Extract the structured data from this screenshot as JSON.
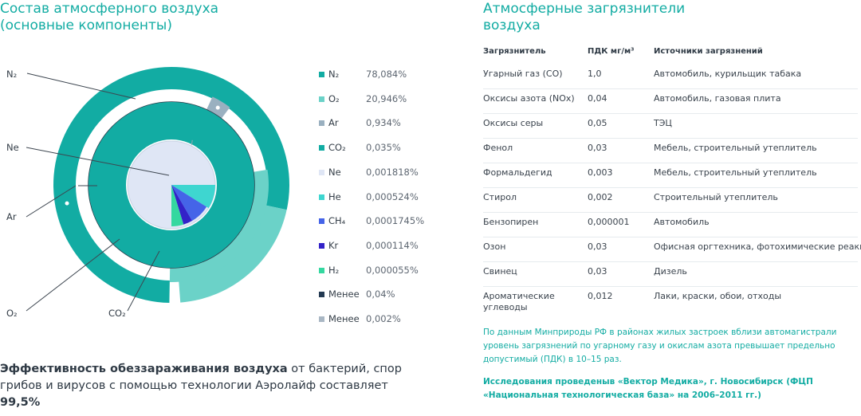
{
  "left_title": "Состав атмосферного воздуха\n(основные компоненты)",
  "right_title": "Атмосферные загрязнители\nвоздуха",
  "ring_labels": {
    "n2": "N₂",
    "ne": "Ne",
    "ar": "Ar",
    "o2": "O₂",
    "co2": "CO₂"
  },
  "chart_data": {
    "type": "pie",
    "title": "",
    "series": [
      {
        "name": "N₂",
        "value": 78.084,
        "label": "78,084%",
        "color": "#12aca3"
      },
      {
        "name": "O₂",
        "value": 20.946,
        "label": "20,946%",
        "color": "#6bd2c8"
      },
      {
        "name": "Ar",
        "value": 0.934,
        "label": "0,934%",
        "color": "#9ab0c0"
      },
      {
        "name": "CO₂",
        "value": 0.035,
        "label": "0,035%",
        "color": "#12aca3"
      },
      {
        "name": "Ne",
        "value": 0.001818,
        "label": "0,001818%",
        "color": "#dfe6f5"
      },
      {
        "name": "He",
        "value": 0.000524,
        "label": "0,000524%",
        "color": "#3ed6d0"
      },
      {
        "name": "CH₄",
        "value": 0.0001745,
        "label": "0,0001745%",
        "color": "#4564e8"
      },
      {
        "name": "Kr",
        "value": 0.000114,
        "label": "0,000114%",
        "color": "#3322c8"
      },
      {
        "name": "H₂",
        "value": 5.5e-05,
        "label": "0,000055%",
        "color": "#34d8a0"
      },
      {
        "name": "Менее",
        "value": 0.04,
        "label": "0,04%",
        "color": "#233a52"
      },
      {
        "name": "Менее",
        "value": 0.002,
        "label": "0,002%",
        "color": "#a9b7c4"
      }
    ]
  },
  "table": {
    "headers": [
      "Загрязнитель",
      "ПДК мг/м³",
      "Источники загрязнений"
    ],
    "rows": [
      [
        "Угарный газ (CO)",
        "1,0",
        "Автомобиль, курильщик табака"
      ],
      [
        "Оксисы азота (NOx)",
        "0,04",
        "Автомобиль, газовая плита"
      ],
      [
        "Оксисы серы",
        "0,05",
        "ТЭЦ"
      ],
      [
        "Фенол",
        "0,03",
        "Мебель, строительный утеплитель"
      ],
      [
        "Формальдегид",
        "0,003",
        "Мебель, строительный утеплитель"
      ],
      [
        "Стирол",
        "0,002",
        "Строительный утеплитель"
      ],
      [
        "Бензопирен",
        "0,000001",
        "Автомобиль"
      ],
      [
        "Озон",
        "0,03",
        "Офисная оргтехника, фотохимические реакции"
      ],
      [
        "Свинец",
        "0,03",
        "Дизель"
      ],
      [
        "Ароматические углеводы",
        "0,012",
        "Лаки, краски, обои, отходы"
      ]
    ]
  },
  "note1": "По данным Минприроды РФ в районах жилых застроек вблизи автомагистрали уровень загрязнений по угарному газу и окислам азота превышает предельно допустимый (ПДК) в 10–15 раз.",
  "note2": "Исследования проведеныв «Вектор Медика», г. Новосибирск (ФЦП «Национальная технологическая база» на 2006–2011 гг.)",
  "bottom": {
    "bold_lead": "Эффективность обеззараживания воздуха",
    "text": " от бактерий, спор грибов и вирусов с помощью технологии Аэролайф составляет ",
    "bold_value": "99,5%"
  }
}
